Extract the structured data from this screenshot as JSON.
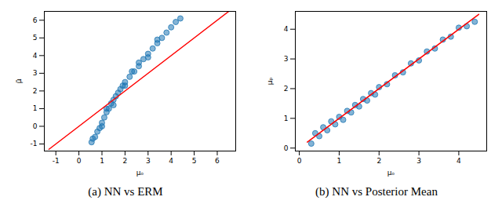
{
  "chart_data": [
    {
      "type": "scatter",
      "title": "(a) NN vs ERM",
      "x_label": "μₒ",
      "y_label": "μ̃",
      "xlim": [
        -1.5,
        6.8
      ],
      "ylim": [
        -1.4,
        6.5
      ],
      "xticks": [
        -1,
        0,
        1,
        2,
        3,
        4,
        5,
        6
      ],
      "yticks": [
        -1,
        0,
        1,
        2,
        3,
        4,
        5,
        6
      ],
      "grid": false,
      "series": [
        {
          "type": "scatter",
          "color": "#1f77b4",
          "marker": "circle",
          "x": [
            0.55,
            0.6,
            0.7,
            0.8,
            0.9,
            1.0,
            1.0,
            1.1,
            1.2,
            1.2,
            1.3,
            1.4,
            1.5,
            1.5,
            1.6,
            1.7,
            1.8,
            1.9,
            2.0,
            2.0,
            2.2,
            2.3,
            2.4,
            2.6,
            2.6,
            2.8,
            3.0,
            3.0,
            3.2,
            3.4,
            3.4,
            3.6,
            3.8,
            4.0,
            4.2,
            4.4
          ],
          "values": [
            -0.9,
            -0.7,
            -0.6,
            -0.3,
            -0.1,
            0.2,
            0.0,
            0.5,
            0.8,
            1.0,
            1.0,
            1.3,
            1.5,
            1.2,
            1.7,
            1.9,
            2.1,
            2.3,
            2.5,
            2.3,
            2.8,
            3.1,
            3.1,
            3.4,
            3.6,
            3.8,
            4.1,
            3.9,
            4.4,
            4.7,
            4.9,
            5.0,
            5.3,
            5.6,
            5.9,
            6.1
          ]
        },
        {
          "type": "line",
          "color": "#ff0000",
          "line_style": "solid",
          "x": [
            -1.3,
            6.5
          ],
          "values": [
            -1.3,
            6.5
          ]
        }
      ]
    },
    {
      "type": "scatter",
      "title": "(b) NN vs Posterior Mean",
      "x_label": "μₒ",
      "y_label": "μₚ",
      "xlim": [
        -0.1,
        4.7
      ],
      "ylim": [
        -0.1,
        4.6
      ],
      "xticks": [
        0,
        1,
        2,
        3,
        4
      ],
      "yticks": [
        0,
        1,
        2,
        3,
        4
      ],
      "grid": false,
      "series": [
        {
          "type": "scatter",
          "color": "#1f77b4",
          "marker": "circle",
          "x": [
            0.3,
            0.4,
            0.5,
            0.6,
            0.7,
            0.8,
            0.9,
            1.0,
            1.1,
            1.2,
            1.3,
            1.4,
            1.5,
            1.6,
            1.7,
            1.8,
            1.9,
            2.0,
            2.2,
            2.4,
            2.6,
            2.8,
            3.0,
            3.2,
            3.4,
            3.6,
            3.8,
            4.0,
            4.2,
            4.4
          ],
          "values": [
            0.15,
            0.5,
            0.4,
            0.7,
            0.6,
            0.9,
            0.8,
            1.05,
            0.95,
            1.25,
            1.2,
            1.45,
            1.4,
            1.65,
            1.6,
            1.85,
            1.8,
            2.05,
            2.15,
            2.45,
            2.55,
            2.85,
            2.95,
            3.25,
            3.35,
            3.65,
            3.75,
            4.05,
            4.1,
            4.25
          ]
        },
        {
          "type": "line",
          "color": "#ff0000",
          "line_style": "solid",
          "x": [
            0.2,
            4.5
          ],
          "values": [
            0.2,
            4.5
          ]
        }
      ]
    }
  ]
}
